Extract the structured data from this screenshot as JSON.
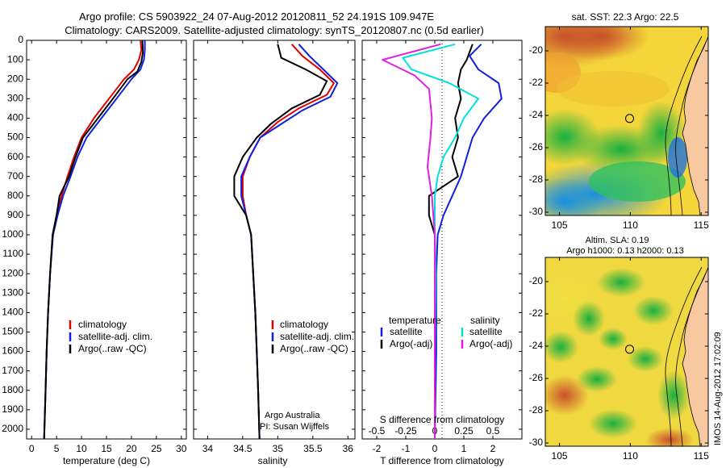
{
  "header": {
    "line1": "Argo profile: CS 5903922_24 07-Aug-2012 20120811_52 24.191S 109.947E",
    "line2": "Climatology: CARS2009. Satellite-adjusted climatology: synTS_20120807.nc (0.5d earlier)"
  },
  "colors": {
    "climatology": "#e00000",
    "satellite": "#1020e0",
    "argo": "#000000",
    "sat_salinity": "#00e0e0",
    "argo_salinity": "#e020e0"
  },
  "depth_axis": {
    "ylim": [
      0,
      2050
    ],
    "ticks": [
      0,
      100,
      200,
      300,
      400,
      500,
      600,
      700,
      800,
      900,
      1000,
      1100,
      1200,
      1300,
      1400,
      1500,
      1600,
      1700,
      1800,
      1900,
      2000
    ]
  },
  "chart_data": [
    {
      "type": "line",
      "id": "temperature",
      "xlabel": "temperature (deg C)",
      "xlim": [
        -1,
        31
      ],
      "xticks": [
        0,
        5,
        10,
        15,
        20,
        25,
        30
      ],
      "legend": [
        "climatology",
        "satellite-adj. clim.",
        "Argo(..raw -QC)"
      ],
      "series": [
        {
          "name": "climatology",
          "color": "#e00000",
          "points": [
            [
              21.8,
              0
            ],
            [
              22,
              50
            ],
            [
              21.5,
              100
            ],
            [
              20.5,
              150
            ],
            [
              18.5,
              200
            ],
            [
              15.5,
              300
            ],
            [
              12.5,
              400
            ],
            [
              10,
              500
            ],
            [
              8.5,
              600
            ],
            [
              7.2,
              700
            ],
            [
              6,
              800
            ],
            [
              5,
              900
            ],
            [
              4.2,
              1000
            ],
            [
              3.7,
              1200
            ],
            [
              3.3,
              1400
            ],
            [
              3,
              1600
            ],
            [
              2.8,
              1800
            ],
            [
              2.5,
              2050
            ]
          ]
        },
        {
          "name": "satellite-adj. clim.",
          "color": "#1020e0",
          "points": [
            [
              22.7,
              0
            ],
            [
              22.7,
              50
            ],
            [
              22.5,
              100
            ],
            [
              21.8,
              150
            ],
            [
              20,
              200
            ],
            [
              17,
              300
            ],
            [
              14,
              400
            ],
            [
              11,
              500
            ],
            [
              9.2,
              600
            ],
            [
              7.8,
              700
            ],
            [
              6.3,
              800
            ],
            [
              5.2,
              900
            ],
            [
              4.3,
              1000
            ],
            [
              3.7,
              1200
            ],
            [
              3.3,
              1400
            ],
            [
              3,
              1600
            ],
            [
              2.8,
              1800
            ],
            [
              2.5,
              2050
            ]
          ]
        },
        {
          "name": "Argo(..raw -QC)",
          "color": "#000000",
          "points": [
            [
              22.2,
              0
            ],
            [
              22.3,
              60
            ],
            [
              22,
              110
            ],
            [
              21.2,
              160
            ],
            [
              19.2,
              200
            ],
            [
              16.3,
              300
            ],
            [
              13.3,
              400
            ],
            [
              10.3,
              500
            ],
            [
              8.8,
              600
            ],
            [
              7.5,
              700
            ],
            [
              5.6,
              800
            ],
            [
              5,
              900
            ],
            [
              4.2,
              1000
            ],
            [
              3.7,
              1200
            ],
            [
              3.3,
              1400
            ],
            [
              3,
              1600
            ],
            [
              2.8,
              1800
            ],
            [
              2.5,
              2050
            ]
          ]
        }
      ]
    },
    {
      "type": "line",
      "id": "salinity",
      "xlabel": "salinity",
      "xlim": [
        33.8,
        36.1
      ],
      "xticks": [
        34,
        34.5,
        35,
        35.5,
        36
      ],
      "legend": [
        "climatology",
        "satellite-adj. clim.",
        "Argo(..raw -QC)"
      ],
      "annotation": [
        "Argo Australia",
        "PI: Susan Wijffels"
      ],
      "series": [
        {
          "name": "climatology",
          "color": "#e00000",
          "points": [
            [
              35.2,
              20
            ],
            [
              35.35,
              80
            ],
            [
              35.6,
              150
            ],
            [
              35.8,
              220
            ],
            [
              35.7,
              280
            ],
            [
              35.3,
              350
            ],
            [
              35,
              420
            ],
            [
              34.75,
              500
            ],
            [
              34.6,
              600
            ],
            [
              34.5,
              700
            ],
            [
              34.5,
              800
            ],
            [
              34.55,
              900
            ],
            [
              34.62,
              1000
            ],
            [
              34.65,
              1200
            ],
            [
              34.68,
              1400
            ],
            [
              34.7,
              1600
            ],
            [
              34.72,
              1800
            ],
            [
              34.74,
              2050
            ]
          ]
        },
        {
          "name": "satellite-adj. clim.",
          "color": "#1020e0",
          "points": [
            [
              35.3,
              20
            ],
            [
              35.45,
              80
            ],
            [
              35.65,
              150
            ],
            [
              35.85,
              220
            ],
            [
              35.75,
              290
            ],
            [
              35.35,
              360
            ],
            [
              35.05,
              430
            ],
            [
              34.75,
              500
            ],
            [
              34.6,
              600
            ],
            [
              34.48,
              700
            ],
            [
              34.48,
              800
            ],
            [
              34.55,
              900
            ],
            [
              34.62,
              1000
            ],
            [
              34.65,
              1200
            ],
            [
              34.68,
              1400
            ],
            [
              34.7,
              1600
            ],
            [
              34.72,
              1800
            ],
            [
              34.74,
              2050
            ]
          ]
        },
        {
          "name": "Argo(..raw -QC)",
          "color": "#000000",
          "points": [
            [
              35,
              20
            ],
            [
              35.05,
              90
            ],
            [
              35.4,
              150
            ],
            [
              35.7,
              210
            ],
            [
              35.6,
              280
            ],
            [
              35.2,
              350
            ],
            [
              34.9,
              430
            ],
            [
              34.7,
              500
            ],
            [
              34.5,
              600
            ],
            [
              34.38,
              700
            ],
            [
              34.38,
              800
            ],
            [
              34.55,
              900
            ],
            [
              34.62,
              1000
            ],
            [
              34.65,
              1200
            ],
            [
              34.68,
              1400
            ],
            [
              34.7,
              1600
            ],
            [
              34.72,
              1800
            ],
            [
              34.74,
              2050
            ]
          ]
        }
      ]
    },
    {
      "type": "line",
      "id": "differences",
      "xlabel": "T difference from climatology",
      "x2label": "S difference from climatology",
      "xlim": [
        -2.5,
        3
      ],
      "xticks": [
        -2,
        -1,
        0,
        1,
        2
      ],
      "x2ticks": [
        {
          "v": -2,
          "label": "-0.5"
        },
        {
          "v": -1,
          "label": "-0.25"
        },
        {
          "v": 0,
          "label": "0"
        },
        {
          "v": 1,
          "label": "0.25"
        },
        {
          "v": 2,
          "label": "0.5"
        }
      ],
      "legend_left_title": "temperature",
      "legend_right_title": "salinity",
      "legend_left": [
        "satellite",
        "Argo(-adj)"
      ],
      "legend_right": [
        "satellite",
        "Argo(-adj)"
      ],
      "series": [
        {
          "name": "satellite",
          "color": "#1020e0",
          "points": [
            [
              1.6,
              20
            ],
            [
              1.2,
              80
            ],
            [
              1.5,
              150
            ],
            [
              2.2,
              220
            ],
            [
              2.3,
              300
            ],
            [
              1.7,
              400
            ],
            [
              1.3,
              500
            ],
            [
              1.1,
              600
            ],
            [
              0.9,
              700
            ],
            [
              0.6,
              800
            ],
            [
              0.3,
              900
            ],
            [
              0.1,
              1000
            ],
            [
              0.05,
              1200
            ],
            [
              0.05,
              1600
            ],
            [
              0,
              2050
            ]
          ]
        },
        {
          "name": "Argo(-adj)",
          "color": "#000000",
          "points": [
            [
              1.3,
              20
            ],
            [
              1.1,
              100
            ],
            [
              0.9,
              150
            ],
            [
              0.8,
              220
            ],
            [
              0.9,
              300
            ],
            [
              0.7,
              400
            ],
            [
              0.8,
              500
            ],
            [
              0.6,
              600
            ],
            [
              0.8,
              700
            ],
            [
              -0.2,
              800
            ],
            [
              -0.2,
              900
            ],
            [
              0,
              1000
            ],
            [
              0.02,
              1200
            ],
            [
              0,
              1600
            ],
            [
              0,
              2050
            ]
          ]
        },
        {
          "name": "satellite",
          "color": "#00e0e0",
          "points": [
            [
              0.7,
              20
            ],
            [
              -1.1,
              90
            ],
            [
              -0.8,
              150
            ],
            [
              0.5,
              220
            ],
            [
              1.5,
              300
            ],
            [
              1,
              400
            ],
            [
              0.7,
              500
            ],
            [
              0.3,
              600
            ],
            [
              0.1,
              700
            ],
            [
              0,
              800
            ],
            [
              0,
              900
            ],
            [
              0,
              1000
            ],
            [
              0.03,
              1200
            ],
            [
              0,
              1600
            ],
            [
              0,
              2050
            ]
          ]
        },
        {
          "name": "Argo(-adj)",
          "color": "#e020e0",
          "points": [
            [
              0.2,
              20
            ],
            [
              -1.8,
              100
            ],
            [
              -0.7,
              180
            ],
            [
              -0.2,
              250
            ],
            [
              -0.1,
              400
            ],
            [
              -0.15,
              500
            ],
            [
              -0.25,
              650
            ],
            [
              -0.1,
              800
            ],
            [
              0,
              1000
            ],
            [
              0,
              1600
            ],
            [
              0,
              2050
            ]
          ]
        }
      ]
    }
  ],
  "maps": [
    {
      "id": "sst",
      "title": "sat. SST: 22.3 Argo: 22.5",
      "xticks": [
        105,
        110,
        115
      ],
      "yticks": [
        -20,
        -22,
        -24,
        -26,
        -28,
        -30
      ],
      "xlim": [
        104,
        115.5
      ],
      "ylim": [
        -30.2,
        -18.5
      ],
      "marker": [
        109.947,
        -24.191
      ]
    },
    {
      "id": "sla",
      "title_line1": "Altim. SLA: 0.19",
      "title_line2": "Argo h1000: 0.13 h2000: 0.13",
      "xticks": [
        105,
        110,
        115
      ],
      "yticks": [
        -20,
        -22,
        -24,
        -26,
        -28,
        -30
      ],
      "xlim": [
        104,
        115.5
      ],
      "ylim": [
        -30.2,
        -18.5
      ],
      "marker": [
        109.947,
        -24.191
      ]
    }
  ],
  "stamp": "IMOS 14-Aug-2012 17:02:09"
}
